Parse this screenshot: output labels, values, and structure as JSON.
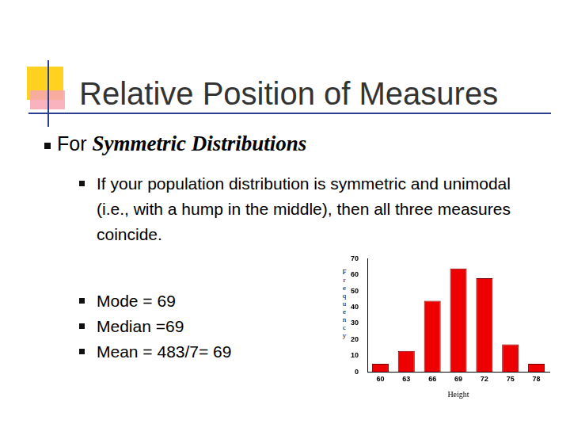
{
  "slide": {
    "title": "Relative Position of Measures",
    "bullet": {
      "lead": "For",
      "emphasis": "Symmetric Distributions"
    },
    "sub_bullets": [
      "If your population distribution is symmetric and unimodal (i.e., with a hump in the middle), then all three measures coincide.",
      "Mode = 69",
      "Median =69",
      "Mean = 483/7= 69"
    ]
  },
  "chart_data": {
    "type": "bar",
    "x_label": "Height",
    "y_label": "Frequency",
    "categories": [
      60,
      63,
      66,
      69,
      72,
      75,
      78
    ],
    "values": [
      5,
      13,
      44,
      64,
      58,
      17,
      5
    ],
    "color": "#ee0000",
    "ylim": [
      0,
      70
    ],
    "yticks": [
      0,
      10,
      20,
      30,
      40,
      50,
      60,
      70
    ],
    "grid": false
  }
}
